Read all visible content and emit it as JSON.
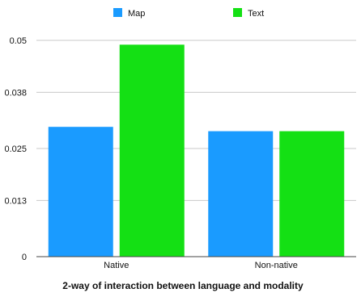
{
  "chart_data": {
    "type": "bar",
    "categories": [
      "Native",
      "Non-native"
    ],
    "series": [
      {
        "name": "Map",
        "color": "#1a9bff",
        "values": [
          0.03,
          0.029
        ]
      },
      {
        "name": "Text",
        "color": "#14e014",
        "values": [
          0.049,
          0.029
        ]
      }
    ],
    "xlabel": "2-way of interaction between language and modality",
    "ylabel": "",
    "ylim": [
      0,
      0.05
    ],
    "yticks": [
      "0",
      "0.013",
      "0.025",
      "0.038",
      "0.05"
    ],
    "grid": true,
    "legend": "top"
  }
}
